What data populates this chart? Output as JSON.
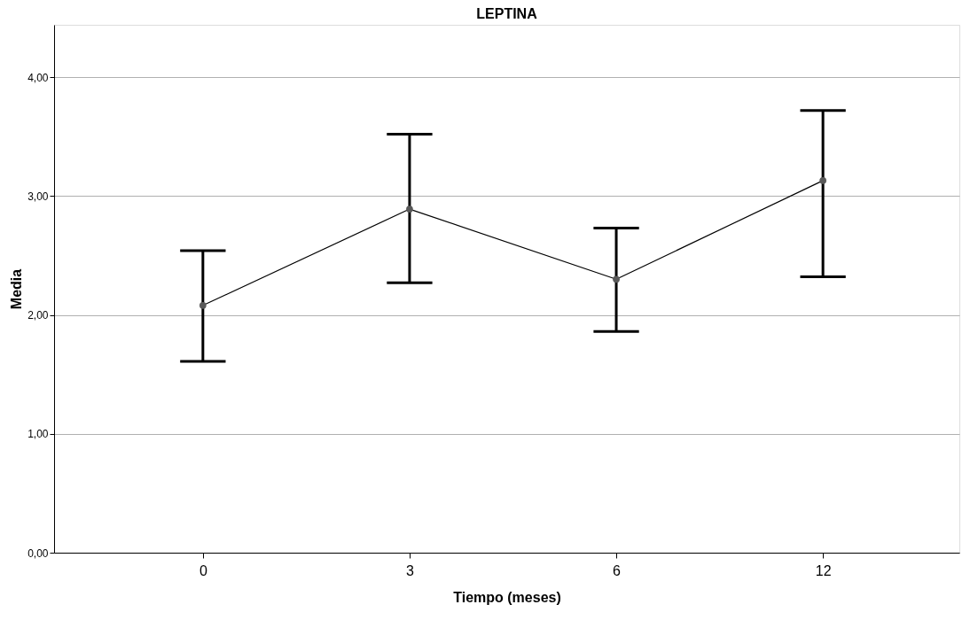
{
  "chart_data": {
    "type": "line",
    "title": "LEPTINA",
    "xlabel": "Tiempo (meses)",
    "ylabel": "Media",
    "categories": [
      "0",
      "3",
      "6",
      "12"
    ],
    "values": [
      2.08,
      2.89,
      2.3,
      3.13
    ],
    "errors": [
      [
        1.61,
        2.54
      ],
      [
        2.27,
        3.52
      ],
      [
        1.86,
        2.73
      ],
      [
        2.32,
        3.72
      ]
    ],
    "color": "#000000",
    "ylim": [
      0,
      4.44
    ],
    "yticks": [
      {
        "value": 0,
        "label": "0,00"
      },
      {
        "value": 1,
        "label": "1,00"
      },
      {
        "value": 2,
        "label": "2,00"
      },
      {
        "value": 3,
        "label": "3,00"
      },
      {
        "value": 4,
        "label": "4,00"
      }
    ],
    "grid": "y",
    "marker": "circle",
    "line_style": "solid"
  }
}
